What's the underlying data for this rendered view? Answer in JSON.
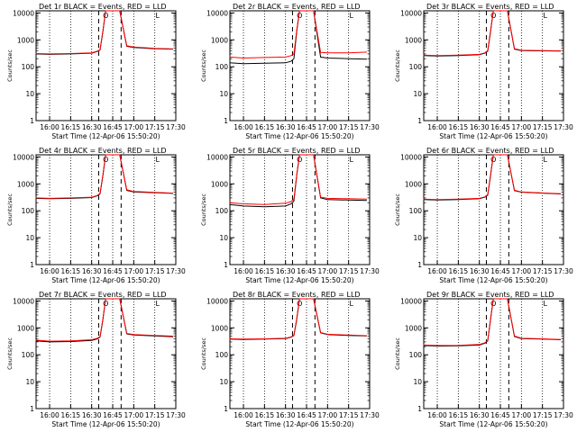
{
  "chart_data": [
    {
      "type": "line",
      "title": "Det 1r BLACK = Events, RED = LLD",
      "ylabel": "Counts/sec",
      "xlabel": "Start Time (12-Apr-06 15:50:20)",
      "xticks": [
        "16:00",
        "16:15",
        "16:30",
        "16:45",
        "17:00",
        "17:15",
        "17:30"
      ],
      "yticks": [
        "1",
        "10",
        "100",
        "1000",
        "10000"
      ],
      "xlim": [
        "15:50:20",
        "17:30"
      ],
      "ylim": [
        1,
        12000
      ],
      "yscale": "log",
      "markers": [
        "O",
        "L"
      ],
      "series": [
        {
          "color": "#000000",
          "x": [
            "15:50",
            "16:00",
            "16:15",
            "16:30",
            "16:34",
            "16:36",
            "16:38",
            "16:40",
            "16:42",
            "16:50",
            "16:55",
            "17:00",
            "17:15",
            "17:28"
          ],
          "y": [
            300,
            290,
            300,
            320,
            370,
            420,
            2000,
            12000,
            12000,
            12000,
            580,
            520,
            470,
            450
          ]
        },
        {
          "color": "#ff0000",
          "x": [
            "15:50",
            "16:00",
            "16:15",
            "16:30",
            "16:34",
            "16:36",
            "16:38",
            "16:40",
            "16:42",
            "16:50",
            "16:55",
            "17:00",
            "17:15",
            "17:28"
          ],
          "y": [
            310,
            300,
            310,
            330,
            380,
            430,
            2100,
            12000,
            12000,
            12000,
            600,
            540,
            480,
            460
          ]
        }
      ]
    },
    {
      "type": "line",
      "title": "Det 2r BLACK = Events, RED = LLD",
      "ylabel": "Counts/sec",
      "xlabel": "Start Time (12-Apr-06 15:50:20)",
      "xticks": [
        "16:00",
        "16:15",
        "16:30",
        "16:45",
        "17:00",
        "17:15",
        "17:30"
      ],
      "yticks": [
        "1",
        "10",
        "100",
        "1000",
        "10000"
      ],
      "xlim": [
        "15:50:20",
        "17:30"
      ],
      "ylim": [
        1,
        12000
      ],
      "yscale": "log",
      "markers": [
        "O",
        "L"
      ],
      "series": [
        {
          "color": "#000000",
          "x": [
            "15:50",
            "16:00",
            "16:15",
            "16:30",
            "16:34",
            "16:36",
            "16:38",
            "16:40",
            "16:42",
            "16:50",
            "16:55",
            "17:00",
            "17:15",
            "17:28"
          ],
          "y": [
            140,
            130,
            135,
            140,
            160,
            200,
            2000,
            12000,
            12000,
            12000,
            230,
            210,
            200,
            190
          ]
        },
        {
          "color": "#ff0000",
          "x": [
            "15:50",
            "16:00",
            "16:15",
            "16:30",
            "16:34",
            "16:36",
            "16:38",
            "16:40",
            "16:42",
            "16:50",
            "16:55",
            "17:00",
            "17:15",
            "17:28"
          ],
          "y": [
            230,
            210,
            220,
            230,
            260,
            300,
            2200,
            12000,
            12000,
            12000,
            340,
            330,
            330,
            350
          ]
        }
      ]
    },
    {
      "type": "line",
      "title": "Det 3r BLACK = Events, RED = LLD",
      "ylabel": "Counts/sec",
      "xlabel": "Start Time (12-Apr-06 15:50:20)",
      "xticks": [
        "16:00",
        "16:15",
        "16:30",
        "16:45",
        "17:00",
        "17:15",
        "17:30"
      ],
      "yticks": [
        "1",
        "10",
        "100",
        "1000",
        "10000"
      ],
      "xlim": [
        "15:50:20",
        "17:30"
      ],
      "ylim": [
        1,
        12000
      ],
      "yscale": "log",
      "markers": [
        "O",
        "L"
      ],
      "series": [
        {
          "color": "#000000",
          "x": [
            "15:50",
            "16:00",
            "16:15",
            "16:30",
            "16:34",
            "16:36",
            "16:38",
            "16:40",
            "16:42",
            "16:50",
            "16:55",
            "17:00",
            "17:15",
            "17:28"
          ],
          "y": [
            260,
            250,
            260,
            280,
            320,
            380,
            2000,
            12000,
            12000,
            12000,
            450,
            400,
            390,
            380
          ]
        },
        {
          "color": "#ff0000",
          "x": [
            "15:50",
            "16:00",
            "16:15",
            "16:30",
            "16:34",
            "16:36",
            "16:38",
            "16:40",
            "16:42",
            "16:50",
            "16:55",
            "17:00",
            "17:15",
            "17:28"
          ],
          "y": [
            270,
            260,
            270,
            290,
            330,
            400,
            2100,
            12000,
            12000,
            12000,
            470,
            410,
            400,
            390
          ]
        }
      ]
    },
    {
      "type": "line",
      "title": "Det 4r BLACK = Events, RED = LLD",
      "ylabel": "Counts/sec",
      "xlabel": "Start Time (12-Apr-06 15:50:20)",
      "xticks": [
        "16:00",
        "16:15",
        "16:30",
        "16:45",
        "17:00",
        "17:15",
        "17:30"
      ],
      "yticks": [
        "1",
        "10",
        "100",
        "1000",
        "10000"
      ],
      "xlim": [
        "15:50:20",
        "17:30"
      ],
      "ylim": [
        1,
        12000
      ],
      "yscale": "log",
      "markers": [
        "O",
        "L"
      ],
      "series": [
        {
          "color": "#000000",
          "x": [
            "15:50",
            "16:00",
            "16:15",
            "16:30",
            "16:34",
            "16:36",
            "16:38",
            "16:40",
            "16:42",
            "16:50",
            "16:55",
            "17:00",
            "17:15",
            "17:28"
          ],
          "y": [
            290,
            280,
            290,
            310,
            360,
            420,
            2000,
            12000,
            12000,
            12000,
            570,
            500,
            470,
            440
          ]
        },
        {
          "color": "#ff0000",
          "x": [
            "15:50",
            "16:00",
            "16:15",
            "16:30",
            "16:34",
            "16:36",
            "16:38",
            "16:40",
            "16:42",
            "16:50",
            "16:55",
            "17:00",
            "17:15",
            "17:28"
          ],
          "y": [
            300,
            290,
            300,
            320,
            370,
            440,
            2100,
            12000,
            12000,
            12000,
            600,
            520,
            480,
            450
          ]
        }
      ]
    },
    {
      "type": "line",
      "title": "Det 5r BLACK = Events, RED = LLD",
      "ylabel": "Counts/sec",
      "xlabel": "Start Time (12-Apr-06 15:50:20)",
      "xticks": [
        "16:00",
        "16:15",
        "16:30",
        "16:45",
        "17:00",
        "17:15",
        "17:30"
      ],
      "yticks": [
        "1",
        "10",
        "100",
        "1000",
        "10000"
      ],
      "xlim": [
        "15:50:20",
        "17:30"
      ],
      "ylim": [
        1,
        12000
      ],
      "yscale": "log",
      "markers": [
        "O",
        "L"
      ],
      "series": [
        {
          "color": "#000000",
          "x": [
            "15:50",
            "16:00",
            "16:15",
            "16:30",
            "16:34",
            "16:36",
            "16:38",
            "16:40",
            "16:42",
            "16:50",
            "16:55",
            "17:00",
            "17:15",
            "17:28"
          ],
          "y": [
            170,
            150,
            140,
            150,
            180,
            230,
            2000,
            12000,
            12000,
            12000,
            300,
            260,
            250,
            240
          ]
        },
        {
          "color": "#ff0000",
          "x": [
            "15:50",
            "16:00",
            "16:15",
            "16:30",
            "16:34",
            "16:36",
            "16:38",
            "16:40",
            "16:42",
            "16:50",
            "16:55",
            "17:00",
            "17:15",
            "17:28"
          ],
          "y": [
            200,
            180,
            170,
            190,
            220,
            270,
            2100,
            12000,
            12000,
            12000,
            320,
            290,
            280,
            270
          ]
        }
      ]
    },
    {
      "type": "line",
      "title": "Det 6r BLACK = Events, RED = LLD",
      "ylabel": "Counts/sec",
      "xlabel": "Start Time (12-Apr-06 15:50:20)",
      "xticks": [
        "16:00",
        "16:15",
        "16:30",
        "16:45",
        "17:00",
        "17:15",
        "17:30"
      ],
      "yticks": [
        "1",
        "10",
        "100",
        "1000",
        "10000"
      ],
      "xlim": [
        "15:50:20",
        "17:30"
      ],
      "ylim": [
        1,
        12000
      ],
      "yscale": "log",
      "markers": [
        "O",
        "L"
      ],
      "series": [
        {
          "color": "#000000",
          "x": [
            "15:50",
            "16:00",
            "16:15",
            "16:30",
            "16:34",
            "16:36",
            "16:38",
            "16:40",
            "16:42",
            "16:50",
            "16:55",
            "17:00",
            "17:15",
            "17:28"
          ],
          "y": [
            260,
            250,
            260,
            280,
            320,
            380,
            2000,
            12000,
            12000,
            12000,
            560,
            490,
            450,
            420
          ]
        },
        {
          "color": "#ff0000",
          "x": [
            "15:50",
            "16:00",
            "16:15",
            "16:30",
            "16:34",
            "16:36",
            "16:38",
            "16:40",
            "16:42",
            "16:50",
            "16:55",
            "17:00",
            "17:15",
            "17:28"
          ],
          "y": [
            270,
            260,
            270,
            290,
            330,
            400,
            2100,
            12000,
            12000,
            12000,
            580,
            500,
            460,
            430
          ]
        }
      ]
    },
    {
      "type": "line",
      "title": "Det 7r BLACK = Events, RED = LLD",
      "ylabel": "Counts/sec",
      "xlabel": "Start Time (12-Apr-06 15:50:20)",
      "xticks": [
        "16:00",
        "16:15",
        "16:30",
        "16:45",
        "17:00",
        "17:15",
        "17:30"
      ],
      "yticks": [
        "1",
        "10",
        "100",
        "1000",
        "10000"
      ],
      "xlim": [
        "15:50:20",
        "17:30"
      ],
      "ylim": [
        1,
        12000
      ],
      "yscale": "log",
      "markers": [
        "O",
        "L"
      ],
      "series": [
        {
          "color": "#000000",
          "x": [
            "15:50",
            "16:00",
            "16:15",
            "16:30",
            "16:34",
            "16:36",
            "16:38",
            "16:40",
            "16:42",
            "16:50",
            "16:55",
            "17:00",
            "17:15",
            "17:28"
          ],
          "y": [
            330,
            300,
            310,
            340,
            390,
            450,
            2000,
            12000,
            12000,
            12000,
            600,
            540,
            500,
            470
          ]
        },
        {
          "color": "#ff0000",
          "x": [
            "15:50",
            "16:00",
            "16:15",
            "16:30",
            "16:34",
            "16:36",
            "16:38",
            "16:40",
            "16:42",
            "16:50",
            "16:55",
            "17:00",
            "17:15",
            "17:28"
          ],
          "y": [
            350,
            320,
            330,
            360,
            410,
            470,
            2100,
            12000,
            12000,
            12000,
            620,
            560,
            520,
            490
          ]
        }
      ]
    },
    {
      "type": "line",
      "title": "Det 8r BLACK = Events, RED = LLD",
      "ylabel": "Counts/sec",
      "xlabel": "Start Time (12-Apr-06 15:50:20)",
      "xticks": [
        "16:00",
        "16:15",
        "16:30",
        "16:45",
        "17:00",
        "17:15",
        "17:30"
      ],
      "yticks": [
        "1",
        "10",
        "100",
        "1000",
        "10000"
      ],
      "xlim": [
        "15:50:20",
        "17:30"
      ],
      "ylim": [
        1,
        12000
      ],
      "yscale": "log",
      "markers": [
        "O",
        "L"
      ],
      "series": [
        {
          "color": "#000000",
          "x": [
            "15:50",
            "16:00",
            "16:15",
            "16:30",
            "16:34",
            "16:36",
            "16:38",
            "16:40",
            "16:42",
            "16:50",
            "16:55",
            "17:00",
            "17:15",
            "17:28"
          ],
          "y": [
            380,
            370,
            380,
            400,
            450,
            520,
            2000,
            12000,
            12000,
            12000,
            650,
            560,
            520,
            500
          ]
        },
        {
          "color": "#ff0000",
          "x": [
            "15:50",
            "16:00",
            "16:15",
            "16:30",
            "16:34",
            "16:36",
            "16:38",
            "16:40",
            "16:42",
            "16:50",
            "16:55",
            "17:00",
            "17:15",
            "17:28"
          ],
          "y": [
            390,
            380,
            390,
            410,
            460,
            540,
            2100,
            12000,
            12000,
            12000,
            670,
            580,
            540,
            510
          ]
        }
      ]
    },
    {
      "type": "line",
      "title": "Det 9r BLACK = Events, RED = LLD",
      "ylabel": "Counts/sec",
      "xlabel": "Start Time (12-Apr-06 15:50:20)",
      "xticks": [
        "16:00",
        "16:15",
        "16:30",
        "16:45",
        "17:00",
        "17:15",
        "17:30"
      ],
      "yticks": [
        "1",
        "10",
        "100",
        "1000",
        "10000"
      ],
      "xlim": [
        "15:50:20",
        "17:30"
      ],
      "ylim": [
        1,
        12000
      ],
      "yscale": "log",
      "markers": [
        "O",
        "L"
      ],
      "series": [
        {
          "color": "#000000",
          "x": [
            "15:50",
            "16:00",
            "16:15",
            "16:30",
            "16:34",
            "16:36",
            "16:38",
            "16:40",
            "16:42",
            "16:50",
            "16:55",
            "17:00",
            "17:15",
            "17:28"
          ],
          "y": [
            220,
            210,
            215,
            230,
            270,
            330,
            2000,
            12000,
            12000,
            12000,
            480,
            400,
            380,
            360
          ]
        },
        {
          "color": "#ff0000",
          "x": [
            "15:50",
            "16:00",
            "16:15",
            "16:30",
            "16:34",
            "16:36",
            "16:38",
            "16:40",
            "16:42",
            "16:50",
            "16:55",
            "17:00",
            "17:15",
            "17:28"
          ],
          "y": [
            230,
            220,
            225,
            240,
            280,
            340,
            2100,
            12000,
            12000,
            12000,
            500,
            410,
            390,
            370
          ]
        }
      ]
    }
  ]
}
